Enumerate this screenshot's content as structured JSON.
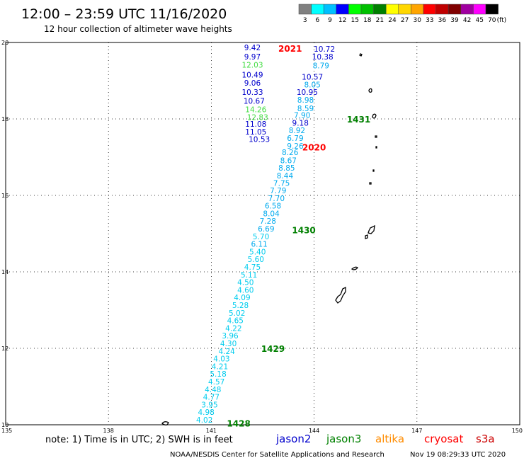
{
  "header": {
    "title": "12:00 – 23:59 UTC 11/16/2020",
    "subtitle": "12 hour collection of altimeter wave heights"
  },
  "legend": {
    "unit": "(ft)",
    "bins": [
      {
        "label": "3",
        "color": "#808080"
      },
      {
        "label": "6",
        "color": "#00ffff"
      },
      {
        "label": "9",
        "color": "#00c0ff"
      },
      {
        "label": "12",
        "color": "#0000ff"
      },
      {
        "label": "15",
        "color": "#00ff00"
      },
      {
        "label": "18",
        "color": "#00c000"
      },
      {
        "label": "21",
        "color": "#008000"
      },
      {
        "label": "24",
        "color": "#ffff00"
      },
      {
        "label": "27",
        "color": "#ffd700"
      },
      {
        "label": "30",
        "color": "#ffa500"
      },
      {
        "label": "33",
        "color": "#ff0000"
      },
      {
        "label": "36",
        "color": "#c00000"
      },
      {
        "label": "39",
        "color": "#800000"
      },
      {
        "label": "42",
        "color": "#a000a0"
      },
      {
        "label": "45",
        "color": "#ff00ff"
      },
      {
        "label": "70",
        "color": "#000000"
      }
    ]
  },
  "map": {
    "lon_range": [
      135,
      150
    ],
    "lat_range": [
      10,
      20
    ],
    "lon_ticks": [
      {
        "value": 135,
        "label": "135"
      },
      {
        "value": 138,
        "label": "138"
      },
      {
        "value": 141,
        "label": "141"
      },
      {
        "value": 144,
        "label": "144"
      },
      {
        "value": 147,
        "label": "147"
      },
      {
        "value": 150,
        "label": "150"
      }
    ],
    "lat_ticks": [
      {
        "value": 10,
        "label": "10"
      },
      {
        "value": 12,
        "label": "12"
      },
      {
        "value": 14,
        "label": "14"
      },
      {
        "value": 16,
        "label": "16"
      },
      {
        "value": 18,
        "label": "18"
      },
      {
        "value": 20,
        "label": "20"
      }
    ],
    "grid": "dotted",
    "pass_labels": [
      {
        "text": "2021",
        "lon": 143.3,
        "lat": 19.85,
        "color": "#ff0000"
      },
      {
        "text": "2020",
        "lon": 144.0,
        "lat": 17.27,
        "color": "#ff0000"
      },
      {
        "text": "1431",
        "lon": 145.3,
        "lat": 18.0,
        "color": "#008000"
      },
      {
        "text": "1430",
        "lon": 143.7,
        "lat": 15.1,
        "color": "#008000"
      },
      {
        "text": "1429",
        "lon": 142.8,
        "lat": 12.0,
        "color": "#008000"
      },
      {
        "text": "1428",
        "lon": 141.8,
        "lat": 10.05,
        "color": "#008000"
      }
    ],
    "observations": [
      {
        "value": "9.42",
        "lon": 142.2,
        "lat": 19.87,
        "color": "#0000cc"
      },
      {
        "value": "9.97",
        "lon": 142.2,
        "lat": 19.63,
        "color": "#0000cc"
      },
      {
        "value": "12.03",
        "lon": 142.2,
        "lat": 19.42,
        "color": "#44dd44"
      },
      {
        "value": "10.49",
        "lon": 142.2,
        "lat": 19.16,
        "color": "#0000cc"
      },
      {
        "value": "9.06",
        "lon": 142.2,
        "lat": 18.94,
        "color": "#0000cc"
      },
      {
        "value": "10.33",
        "lon": 142.2,
        "lat": 18.7,
        "color": "#0000cc"
      },
      {
        "value": "10.67",
        "lon": 142.25,
        "lat": 18.47,
        "color": "#0000cc"
      },
      {
        "value": "14.26",
        "lon": 142.3,
        "lat": 18.25,
        "color": "#44dd44"
      },
      {
        "value": "12.83",
        "lon": 142.35,
        "lat": 18.05,
        "color": "#44dd44"
      },
      {
        "value": "11.08",
        "lon": 142.3,
        "lat": 17.87,
        "color": "#0000cc"
      },
      {
        "value": "11.05",
        "lon": 142.3,
        "lat": 17.67,
        "color": "#0000cc"
      },
      {
        "value": "10.53",
        "lon": 142.4,
        "lat": 17.47,
        "color": "#0000cc"
      },
      {
        "value": "10.72",
        "lon": 144.3,
        "lat": 19.83,
        "color": "#0000cc"
      },
      {
        "value": "10.38",
        "lon": 144.25,
        "lat": 19.63,
        "color": "#0000cc"
      },
      {
        "value": "8.79",
        "lon": 144.2,
        "lat": 19.4,
        "color": "#00aaee"
      },
      {
        "value": "10.57",
        "lon": 143.95,
        "lat": 19.1,
        "color": "#0000cc"
      },
      {
        "value": "8.05",
        "lon": 143.95,
        "lat": 18.9,
        "color": "#00aaee"
      },
      {
        "value": "10.95",
        "lon": 143.8,
        "lat": 18.7,
        "color": "#0000cc"
      },
      {
        "value": "8.98",
        "lon": 143.75,
        "lat": 18.5,
        "color": "#00aaee"
      },
      {
        "value": "8.59",
        "lon": 143.75,
        "lat": 18.28,
        "color": "#00aaee"
      },
      {
        "value": "7.90",
        "lon": 143.65,
        "lat": 18.1,
        "color": "#00aaee"
      },
      {
        "value": "9.18",
        "lon": 143.6,
        "lat": 17.9,
        "color": "#0000cc"
      },
      {
        "value": "8.92",
        "lon": 143.5,
        "lat": 17.7,
        "color": "#00aaee"
      },
      {
        "value": "6.79",
        "lon": 143.45,
        "lat": 17.5,
        "color": "#00aaee"
      },
      {
        "value": "9.26",
        "lon": 143.45,
        "lat": 17.3,
        "color": "#00aaee"
      },
      {
        "value": "8.26",
        "lon": 143.3,
        "lat": 17.13,
        "color": "#00aaee"
      },
      {
        "value": "8.67",
        "lon": 143.25,
        "lat": 16.92,
        "color": "#00aaee"
      },
      {
        "value": "8.85",
        "lon": 143.2,
        "lat": 16.72,
        "color": "#00aaee"
      },
      {
        "value": "8.44",
        "lon": 143.15,
        "lat": 16.52,
        "color": "#00aaee"
      },
      {
        "value": "7.75",
        "lon": 143.05,
        "lat": 16.32,
        "color": "#00aaee"
      },
      {
        "value": "7.79",
        "lon": 142.95,
        "lat": 16.13,
        "color": "#00aaee"
      },
      {
        "value": "7.70",
        "lon": 142.9,
        "lat": 15.93,
        "color": "#00aaee"
      },
      {
        "value": "6.58",
        "lon": 142.8,
        "lat": 15.73,
        "color": "#00aaee"
      },
      {
        "value": "8.04",
        "lon": 142.75,
        "lat": 15.53,
        "color": "#00aaee"
      },
      {
        "value": "7.28",
        "lon": 142.65,
        "lat": 15.33,
        "color": "#00aaee"
      },
      {
        "value": "6.69",
        "lon": 142.6,
        "lat": 15.13,
        "color": "#00aaee"
      },
      {
        "value": "5.70",
        "lon": 142.45,
        "lat": 14.93,
        "color": "#00ccee"
      },
      {
        "value": "6.11",
        "lon": 142.4,
        "lat": 14.73,
        "color": "#00aaee"
      },
      {
        "value": "5.40",
        "lon": 142.35,
        "lat": 14.53,
        "color": "#00ccee"
      },
      {
        "value": "5.60",
        "lon": 142.3,
        "lat": 14.33,
        "color": "#00ccee"
      },
      {
        "value": "4.75",
        "lon": 142.2,
        "lat": 14.13,
        "color": "#00ccee"
      },
      {
        "value": "5.11",
        "lon": 142.1,
        "lat": 13.93,
        "color": "#00ccee"
      },
      {
        "value": "4.50",
        "lon": 142.0,
        "lat": 13.73,
        "color": "#00ccee"
      },
      {
        "value": "4.60",
        "lon": 142.0,
        "lat": 13.53,
        "color": "#00ccee"
      },
      {
        "value": "4.09",
        "lon": 141.9,
        "lat": 13.33,
        "color": "#00ccee"
      },
      {
        "value": "5.28",
        "lon": 141.85,
        "lat": 13.13,
        "color": "#00ccee"
      },
      {
        "value": "5.02",
        "lon": 141.75,
        "lat": 12.93,
        "color": "#00ccee"
      },
      {
        "value": "4.65",
        "lon": 141.7,
        "lat": 12.73,
        "color": "#00ccee"
      },
      {
        "value": "4.22",
        "lon": 141.65,
        "lat": 12.53,
        "color": "#00ccee"
      },
      {
        "value": "3.96",
        "lon": 141.55,
        "lat": 12.33,
        "color": "#00ccee"
      },
      {
        "value": "4.30",
        "lon": 141.5,
        "lat": 12.13,
        "color": "#00ccee"
      },
      {
        "value": "4.24",
        "lon": 141.45,
        "lat": 11.93,
        "color": "#00ccee"
      },
      {
        "value": "4.03",
        "lon": 141.3,
        "lat": 11.73,
        "color": "#00ccee"
      },
      {
        "value": "4.21",
        "lon": 141.25,
        "lat": 11.53,
        "color": "#00ccee"
      },
      {
        "value": "5.18",
        "lon": 141.2,
        "lat": 11.33,
        "color": "#00ccee"
      },
      {
        "value": "4.57",
        "lon": 141.15,
        "lat": 11.13,
        "color": "#00ccee"
      },
      {
        "value": "4.48",
        "lon": 141.05,
        "lat": 10.93,
        "color": "#00ccee"
      },
      {
        "value": "4.77",
        "lon": 141.0,
        "lat": 10.73,
        "color": "#00ccee"
      },
      {
        "value": "3.95",
        "lon": 140.95,
        "lat": 10.53,
        "color": "#00ccee"
      },
      {
        "value": "4.98",
        "lon": 140.85,
        "lat": 10.33,
        "color": "#00ccee"
      },
      {
        "value": "4.02",
        "lon": 140.8,
        "lat": 10.13,
        "color": "#00ccee"
      }
    ]
  },
  "footer": {
    "note": "note: 1) Time is in UTC; 2) SWH is in feet",
    "satellites": [
      {
        "name": "jason2",
        "color": "#0000cc"
      },
      {
        "name": "jason3",
        "color": "#008000"
      },
      {
        "name": "altika",
        "color": "#ff8c00"
      },
      {
        "name": "cryosat",
        "color": "#ff0000"
      },
      {
        "name": "s3a",
        "color": "#cc0000"
      }
    ],
    "credit": "NOAA/NESDIS Center for Satellite Applications and Research",
    "timestamp": "Nov 19 08:29:33 UTC 2020"
  }
}
